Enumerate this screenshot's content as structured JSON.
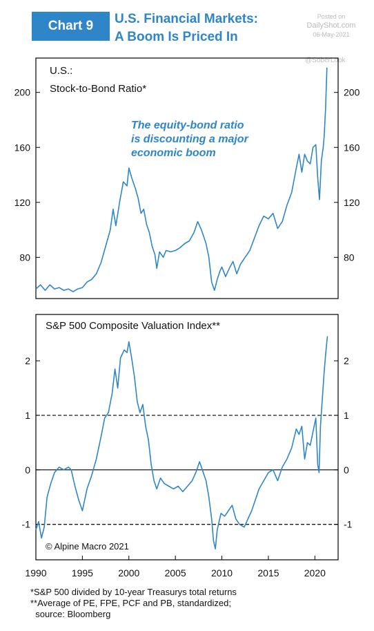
{
  "header": {
    "badge": "Chart 9",
    "title_line1": "U.S. Financial Markets:",
    "title_line2": "A Boom Is Priced In",
    "posted_on": "Posted on",
    "posted_site": "DailyShot.com",
    "posted_date": "06-May-2021",
    "watermark": "@SoberLook"
  },
  "chart_data": [
    {
      "type": "line",
      "title": "U.S.:",
      "subtitle": "Stock-to-Bond Ratio*",
      "annotation": [
        "The equity-bond ratio",
        "is discounting a major",
        "economic boom"
      ],
      "annotation_color": "#2e86c9",
      "series_color": "#2e86c9",
      "xlim": [
        1990,
        2022.5
      ],
      "ylim": [
        50,
        225
      ],
      "yticks": [
        80,
        120,
        160,
        200
      ],
      "grid": false,
      "points": [
        [
          1990.0,
          57
        ],
        [
          1990.5,
          60
        ],
        [
          1991.0,
          56
        ],
        [
          1991.5,
          60
        ],
        [
          1992.0,
          57
        ],
        [
          1992.5,
          58
        ],
        [
          1993.0,
          56
        ],
        [
          1993.5,
          57
        ],
        [
          1994.0,
          55
        ],
        [
          1994.5,
          57
        ],
        [
          1995.0,
          58
        ],
        [
          1995.5,
          62
        ],
        [
          1996.0,
          64
        ],
        [
          1996.5,
          68
        ],
        [
          1997.0,
          76
        ],
        [
          1997.5,
          88
        ],
        [
          1998.0,
          100
        ],
        [
          1998.3,
          115
        ],
        [
          1998.6,
          103
        ],
        [
          1999.0,
          120
        ],
        [
          1999.4,
          135
        ],
        [
          1999.8,
          132
        ],
        [
          2000.0,
          145
        ],
        [
          2000.3,
          138
        ],
        [
          2000.7,
          130
        ],
        [
          2001.0,
          123
        ],
        [
          2001.3,
          112
        ],
        [
          2001.6,
          115
        ],
        [
          2001.9,
          104
        ],
        [
          2002.2,
          98
        ],
        [
          2002.5,
          88
        ],
        [
          2002.8,
          82
        ],
        [
          2003.0,
          72
        ],
        [
          2003.3,
          84
        ],
        [
          2003.7,
          80
        ],
        [
          2004.0,
          85
        ],
        [
          2004.5,
          84
        ],
        [
          2005.0,
          85
        ],
        [
          2005.5,
          87
        ],
        [
          2006.0,
          90
        ],
        [
          2006.5,
          92
        ],
        [
          2007.0,
          98
        ],
        [
          2007.4,
          106
        ],
        [
          2007.8,
          100
        ],
        [
          2008.0,
          96
        ],
        [
          2008.3,
          90
        ],
        [
          2008.6,
          80
        ],
        [
          2008.9,
          62
        ],
        [
          2009.2,
          56
        ],
        [
          2009.5,
          64
        ],
        [
          2009.8,
          70
        ],
        [
          2010.0,
          73
        ],
        [
          2010.4,
          66
        ],
        [
          2010.8,
          72
        ],
        [
          2011.2,
          77
        ],
        [
          2011.6,
          68
        ],
        [
          2012.0,
          75
        ],
        [
          2012.5,
          80
        ],
        [
          2013.0,
          85
        ],
        [
          2013.5,
          94
        ],
        [
          2014.0,
          103
        ],
        [
          2014.5,
          110
        ],
        [
          2015.0,
          108
        ],
        [
          2015.5,
          112
        ],
        [
          2016.0,
          101
        ],
        [
          2016.5,
          106
        ],
        [
          2017.0,
          118
        ],
        [
          2017.5,
          127
        ],
        [
          2018.0,
          145
        ],
        [
          2018.3,
          155
        ],
        [
          2018.6,
          142
        ],
        [
          2018.9,
          155
        ],
        [
          2019.2,
          150
        ],
        [
          2019.5,
          148
        ],
        [
          2019.8,
          160
        ],
        [
          2020.1,
          162
        ],
        [
          2020.3,
          138
        ],
        [
          2020.5,
          122
        ],
        [
          2020.7,
          150
        ],
        [
          2020.9,
          160
        ],
        [
          2021.0,
          168
        ],
        [
          2021.15,
          188
        ],
        [
          2021.3,
          218
        ]
      ]
    },
    {
      "type": "line",
      "title": "S&P 500 Composite Valuation Index**",
      "series_color": "#2e86c9",
      "xlim": [
        1990,
        2022.5
      ],
      "ylim": [
        -1.65,
        2.85
      ],
      "yticks": [
        -1,
        0,
        1,
        2
      ],
      "reference_lines": [
        {
          "y": 1,
          "style": "dashed"
        },
        {
          "y": 0,
          "style": "solid"
        },
        {
          "y": -1,
          "style": "dashed"
        }
      ],
      "xticks": [
        1990,
        1995,
        2000,
        2005,
        2010,
        2015,
        2020
      ],
      "grid": false,
      "credit": "© Alpine Macro 2021",
      "points": [
        [
          1990.0,
          -1.1
        ],
        [
          1990.3,
          -0.95
        ],
        [
          1990.6,
          -1.25
        ],
        [
          1990.9,
          -1.05
        ],
        [
          1991.2,
          -0.5
        ],
        [
          1991.6,
          -0.25
        ],
        [
          1992.0,
          -0.05
        ],
        [
          1992.5,
          0.05
        ],
        [
          1993.0,
          0.0
        ],
        [
          1993.5,
          0.05
        ],
        [
          1993.8,
          0.0
        ],
        [
          1994.2,
          -0.3
        ],
        [
          1994.6,
          -0.55
        ],
        [
          1995.0,
          -0.75
        ],
        [
          1995.5,
          -0.35
        ],
        [
          1996.0,
          -0.1
        ],
        [
          1996.5,
          0.2
        ],
        [
          1997.0,
          0.6
        ],
        [
          1997.4,
          0.95
        ],
        [
          1997.8,
          1.05
        ],
        [
          1998.2,
          1.4
        ],
        [
          1998.5,
          1.85
        ],
        [
          1998.8,
          1.5
        ],
        [
          1999.1,
          2.05
        ],
        [
          1999.5,
          2.2
        ],
        [
          1999.8,
          2.15
        ],
        [
          2000.0,
          2.35
        ],
        [
          2000.3,
          2.05
        ],
        [
          2000.6,
          1.7
        ],
        [
          2000.9,
          1.25
        ],
        [
          2001.2,
          1.05
        ],
        [
          2001.5,
          1.2
        ],
        [
          2001.8,
          0.8
        ],
        [
          2002.1,
          0.55
        ],
        [
          2002.4,
          0.1
        ],
        [
          2002.7,
          -0.2
        ],
        [
          2003.0,
          -0.35
        ],
        [
          2003.4,
          -0.15
        ],
        [
          2003.8,
          -0.25
        ],
        [
          2004.3,
          -0.3
        ],
        [
          2004.8,
          -0.35
        ],
        [
          2005.3,
          -0.3
        ],
        [
          2005.8,
          -0.4
        ],
        [
          2006.3,
          -0.3
        ],
        [
          2006.8,
          -0.2
        ],
        [
          2007.2,
          -0.05
        ],
        [
          2007.6,
          0.15
        ],
        [
          2007.9,
          0.0
        ],
        [
          2008.3,
          -0.2
        ],
        [
          2008.6,
          -0.5
        ],
        [
          2008.9,
          -0.9
        ],
        [
          2009.1,
          -1.3
        ],
        [
          2009.3,
          -1.45
        ],
        [
          2009.5,
          -1.1
        ],
        [
          2009.9,
          -0.8
        ],
        [
          2010.3,
          -0.85
        ],
        [
          2010.7,
          -0.75
        ],
        [
          2011.1,
          -0.65
        ],
        [
          2011.5,
          -0.9
        ],
        [
          2011.9,
          -1.0
        ],
        [
          2012.4,
          -1.05
        ],
        [
          2012.8,
          -0.9
        ],
        [
          2013.2,
          -0.75
        ],
        [
          2013.6,
          -0.55
        ],
        [
          2014.0,
          -0.35
        ],
        [
          2014.5,
          -0.2
        ],
        [
          2015.0,
          -0.05
        ],
        [
          2015.5,
          0.0
        ],
        [
          2016.0,
          -0.2
        ],
        [
          2016.5,
          0.05
        ],
        [
          2017.0,
          0.2
        ],
        [
          2017.5,
          0.4
        ],
        [
          2018.0,
          0.75
        ],
        [
          2018.3,
          0.65
        ],
        [
          2018.6,
          0.8
        ],
        [
          2018.9,
          0.2
        ],
        [
          2019.2,
          0.5
        ],
        [
          2019.5,
          0.45
        ],
        [
          2019.8,
          0.7
        ],
        [
          2020.1,
          0.95
        ],
        [
          2020.3,
          0.1
        ],
        [
          2020.45,
          -0.05
        ],
        [
          2020.6,
          0.8
        ],
        [
          2020.8,
          1.3
        ],
        [
          2021.0,
          1.8
        ],
        [
          2021.2,
          2.2
        ],
        [
          2021.35,
          2.45
        ]
      ]
    }
  ],
  "footnotes": [
    "*S&P 500 divided by 10-year Treasurys total returns",
    "**Average of PE, FPE, PCF and PB, standardized;",
    "  source: Bloomberg"
  ]
}
